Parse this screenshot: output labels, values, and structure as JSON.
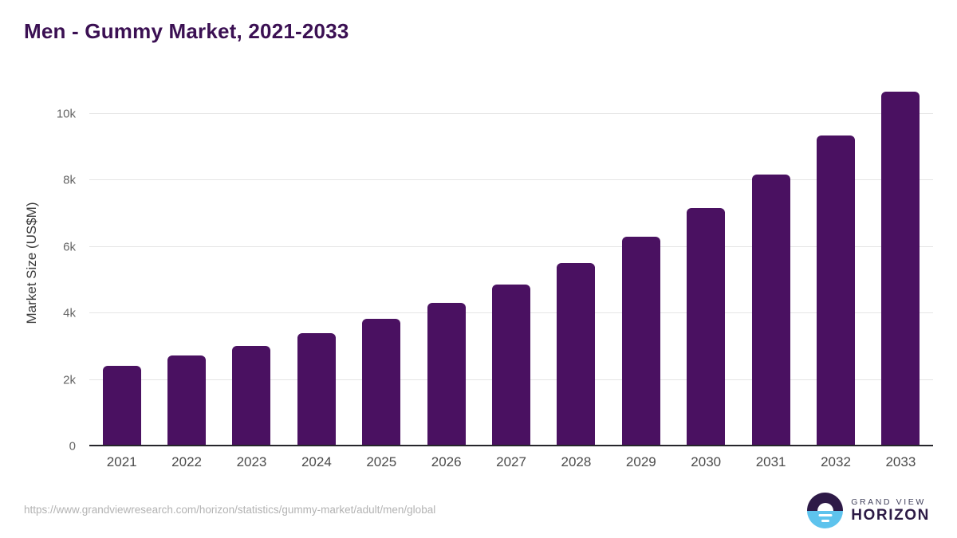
{
  "title": "Men - Gummy Market, 2021-2033",
  "chart_data": {
    "type": "bar",
    "title": "Men - Gummy Market, 2021-2033",
    "categories": [
      "2021",
      "2022",
      "2023",
      "2024",
      "2025",
      "2026",
      "2027",
      "2028",
      "2029",
      "2030",
      "2031",
      "2032",
      "2033"
    ],
    "values": [
      2410,
      2720,
      3030,
      3410,
      3840,
      4300,
      4870,
      5520,
      6310,
      7170,
      8180,
      9330,
      10670
    ],
    "xlabel": "",
    "ylabel": "Market Size (US$M)",
    "ylim": [
      0,
      10000
    ],
    "yticks": [
      {
        "label": "0",
        "value": 0
      },
      {
        "label": "2k",
        "value": 2000
      },
      {
        "label": "4k",
        "value": 4000
      },
      {
        "label": "6k",
        "value": 6000
      },
      {
        "label": "8k",
        "value": 8000
      },
      {
        "label": "10k",
        "value": 10000
      }
    ],
    "grid": true,
    "legend": false,
    "bar_color": "#4a1161"
  },
  "colors": {
    "title": "#3b1053",
    "bar": "#4a1161",
    "gridline": "#e5e5e5",
    "axis_line": "#26262b",
    "tick_text": "#666666",
    "x_label_text": "#4a4a4a",
    "footer_text": "#b3b3b3",
    "logo_dark": "#2e1a47",
    "logo_blue": "#5ec3ed"
  },
  "footer": {
    "source_url": "https://www.grandviewresearch.com/horizon/statistics/gummy-market/adult/men/global",
    "logo": {
      "brand_line1": "GRAND VIEW",
      "brand_line2": "HORIZON"
    }
  }
}
